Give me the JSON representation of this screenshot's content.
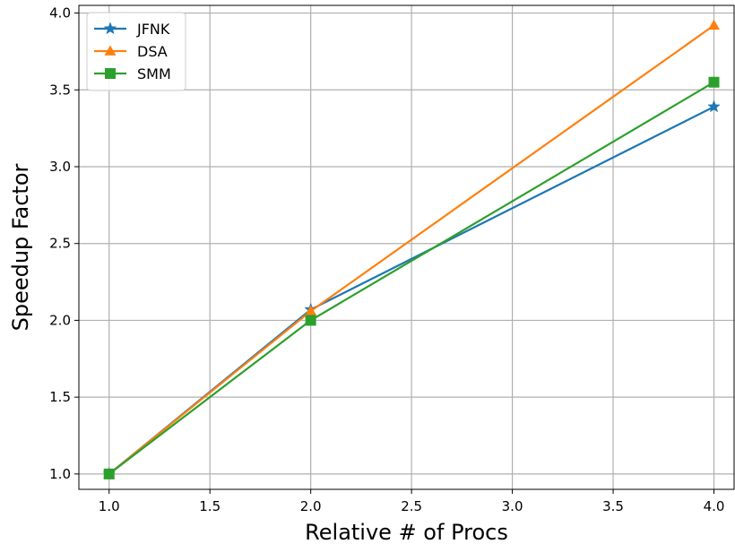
{
  "chart_data": {
    "type": "line",
    "xlabel": "Relative # of Procs",
    "ylabel": "Speedup Factor",
    "x": [
      1.0,
      2.0,
      4.0
    ],
    "xlim": [
      0.85,
      4.1
    ],
    "ylim": [
      0.9,
      4.05
    ],
    "xticks": [
      "1.0",
      "1.5",
      "2.0",
      "2.5",
      "3.0",
      "3.5",
      "4.0"
    ],
    "yticks": [
      "1.0",
      "1.5",
      "2.0",
      "2.5",
      "3.0",
      "3.5",
      "4.0"
    ],
    "grid": true,
    "legend": "upper-left",
    "series": [
      {
        "name": "JFNK",
        "values": [
          1.0,
          2.07,
          3.39
        ],
        "color": "#1f77b4",
        "marker": "star"
      },
      {
        "name": "DSA",
        "values": [
          1.0,
          2.06,
          3.92
        ],
        "color": "#ff7f0e",
        "marker": "triangle"
      },
      {
        "name": "SMM",
        "values": [
          1.0,
          2.0,
          3.55
        ],
        "color": "#2ca02c",
        "marker": "square"
      }
    ]
  }
}
